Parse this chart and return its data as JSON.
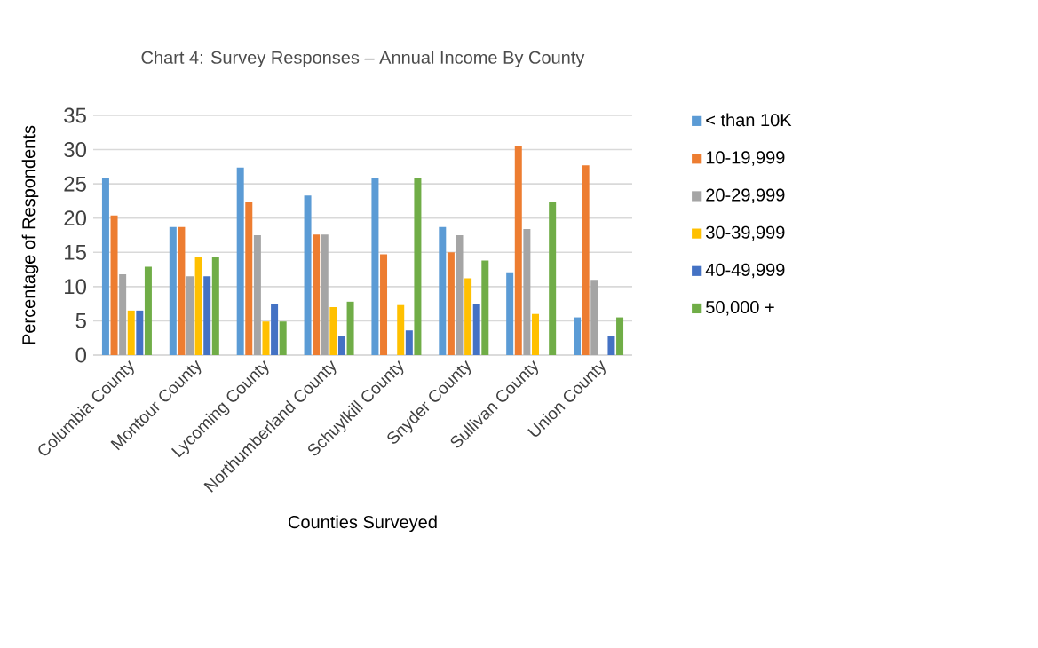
{
  "chart_data": {
    "type": "bar",
    "title": "Chart 4: Survey Responses – Annual Income By County",
    "xlabel": "Counties Surveyed",
    "ylabel": "Percentage of Respondents",
    "categories": [
      "Columbia County",
      "Montour County",
      "Lycoming County",
      "Northumberland County",
      "Schuylkill County",
      "Snyder County",
      "Sullivan County",
      "Union County"
    ],
    "series": [
      {
        "name": "< than 10K",
        "color": "#5b9bd5",
        "values": [
          25.8,
          18.7,
          27.4,
          23.3,
          25.8,
          18.7,
          12.1,
          5.5
        ]
      },
      {
        "name": "10-19,999",
        "color": "#ed7d31",
        "values": [
          20.4,
          18.7,
          22.4,
          17.6,
          14.7,
          15.0,
          30.6,
          27.7
        ]
      },
      {
        "name": "20-29,999",
        "color": "#a5a5a5",
        "values": [
          11.8,
          11.5,
          17.5,
          17.6,
          null,
          17.5,
          18.4,
          11.0
        ]
      },
      {
        "name": "30-39,999",
        "color": "#ffc000",
        "values": [
          6.5,
          14.4,
          4.9,
          7.0,
          7.3,
          11.2,
          6.0,
          null
        ]
      },
      {
        "name": "40-49,999",
        "color": "#4472c4",
        "values": [
          6.5,
          11.5,
          7.4,
          2.8,
          3.6,
          7.4,
          null,
          2.8
        ]
      },
      {
        "name": "50,000 +",
        "color": "#70ad47",
        "values": [
          12.9,
          14.3,
          4.9,
          7.8,
          25.8,
          13.8,
          22.3,
          5.5
        ]
      }
    ],
    "ylim": [
      0,
      35
    ],
    "yticks": [
      0,
      5,
      10,
      15,
      20,
      25,
      30,
      35
    ],
    "grid": "y",
    "legend": "right"
  }
}
